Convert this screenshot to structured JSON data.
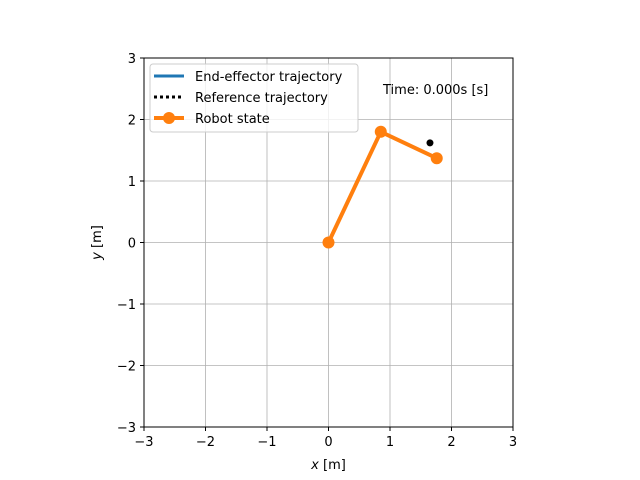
{
  "chart_data": {
    "type": "line",
    "xlabel_var": "x",
    "xlabel_unit": " [m]",
    "ylabel_var": "y",
    "ylabel_unit": " [m]",
    "xlim": [
      -3,
      3
    ],
    "ylim": [
      -3,
      3
    ],
    "x_ticks": [
      -3,
      -2,
      -1,
      0,
      1,
      2,
      3
    ],
    "y_ticks": [
      -3,
      -2,
      -1,
      0,
      1,
      2,
      3
    ],
    "x_tick_labels": [
      "−3",
      "−2",
      "−1",
      "0",
      "1",
      "2",
      "3"
    ],
    "y_tick_labels": [
      "−3",
      "−2",
      "−1",
      "0",
      "1",
      "2",
      "3"
    ],
    "grid": true,
    "legend_position": "top-left",
    "annotation": "Time: 0.000s [s]",
    "series": [
      {
        "name": "End-effector trajectory",
        "style": "solid",
        "color": "#1f77b4",
        "x": [],
        "y": []
      },
      {
        "name": "Reference trajectory",
        "style": "dotted",
        "color": "#000000",
        "x": [],
        "y": []
      },
      {
        "name": "Robot state",
        "style": "solid-with-markers",
        "color": "#ff7f0e",
        "x": [
          0,
          0.85,
          1.76
        ],
        "y": [
          0,
          1.8,
          1.37
        ]
      }
    ],
    "target_point": {
      "x": 1.65,
      "y": 1.62,
      "color": "#000000"
    }
  }
}
